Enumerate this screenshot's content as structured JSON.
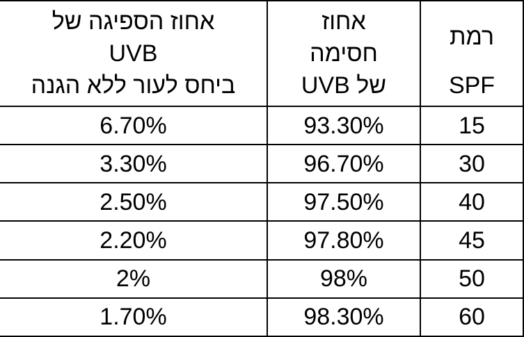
{
  "table": {
    "header": [
      [
        "רמת",
        "SPF"
      ],
      [
        "אחוז",
        "חסימה",
        "של UVB"
      ],
      [
        "אחוז הספיגה של",
        "UVB",
        "ביחס לעור ללא הגנה"
      ]
    ],
    "rows": [
      [
        "15",
        "93.30%",
        "6.70%"
      ],
      [
        "30",
        "96.70%",
        "3.30%"
      ],
      [
        "40",
        "97.50%",
        "2.50%"
      ],
      [
        "45",
        "97.80%",
        "2.20%"
      ],
      [
        "50",
        "98%",
        "2%"
      ],
      [
        "60",
        "98.30%",
        "1.70%"
      ]
    ]
  }
}
